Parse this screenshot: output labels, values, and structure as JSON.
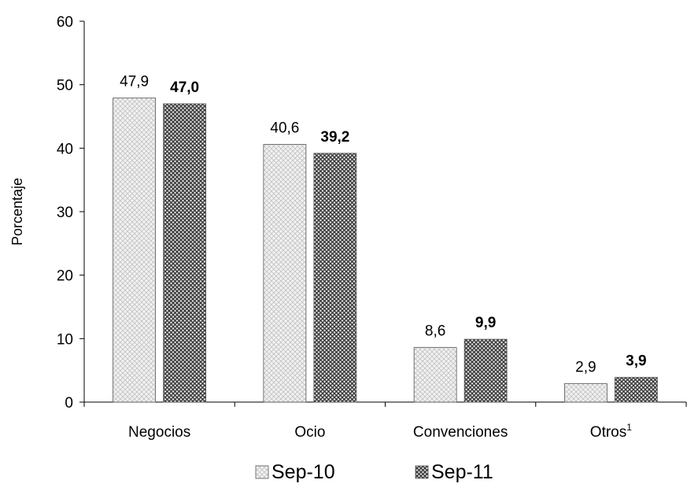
{
  "chart_data": {
    "type": "bar",
    "ylabel": "Porcentaje",
    "ylim": [
      0,
      60
    ],
    "yticks": [
      0,
      10,
      20,
      30,
      40,
      50,
      60
    ],
    "categories": [
      {
        "label": "Negocios",
        "sup": ""
      },
      {
        "label": "Ocio",
        "sup": ""
      },
      {
        "label": "Convenciones",
        "sup": ""
      },
      {
        "label": "Otros",
        "sup": "1"
      }
    ],
    "series": [
      {
        "name": "Sep-10",
        "values": [
          47.9,
          40.6,
          8.6,
          2.9
        ],
        "labels": [
          "47,9",
          "40,6",
          "8,6",
          "2,9"
        ],
        "label_weight": "normal",
        "pattern": "light-crosshatch"
      },
      {
        "name": "Sep-11",
        "values": [
          47.0,
          39.2,
          9.9,
          3.9
        ],
        "labels": [
          "47,0",
          "39,2",
          "9,9",
          "3,9"
        ],
        "label_weight": "bold",
        "pattern": "dark-crosshatch"
      }
    ],
    "legend_position": "bottom",
    "grid": false
  }
}
